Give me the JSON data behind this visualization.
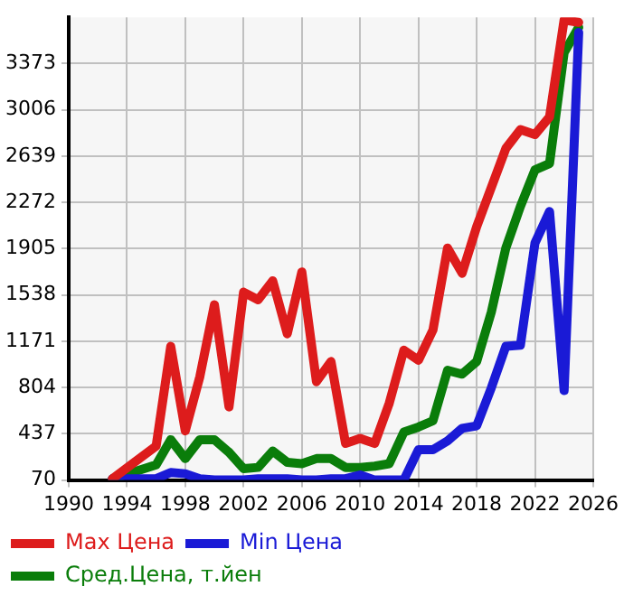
{
  "chart_data": {
    "type": "line",
    "x": [
      1993,
      1996,
      1997,
      1998,
      1999,
      2000,
      2001,
      2002,
      2003,
      2004,
      2005,
      2006,
      2007,
      2008,
      2009,
      2010,
      2011,
      2012,
      2013,
      2014,
      2015,
      2016,
      2017,
      2018,
      2019,
      2020,
      2021,
      2022,
      2023,
      2024,
      2025
    ],
    "series": [
      {
        "name": "Max Цена",
        "color": "#dd1c1c",
        "values": [
          80,
          340,
          1130,
          460,
          890,
          1460,
          650,
          1560,
          1500,
          1650,
          1230,
          1720,
          850,
          1010,
          360,
          400,
          360,
          680,
          1100,
          1020,
          1260,
          1910,
          1710,
          2080,
          2390,
          2700,
          2850,
          2810,
          2950,
          3720,
          3700
        ]
      },
      {
        "name": "Min Цена",
        "color": "#1a1ad6",
        "values": [
          80,
          80,
          130,
          120,
          80,
          70,
          70,
          70,
          80,
          80,
          80,
          70,
          70,
          80,
          80,
          110,
          70,
          70,
          70,
          310,
          310,
          380,
          480,
          500,
          800,
          1130,
          1140,
          1950,
          2200,
          780,
          3620
        ]
      },
      {
        "name": "Сред.Цена, т.йен",
        "color": "#0a7d0a",
        "values": [
          80,
          190,
          390,
          240,
          390,
          390,
          290,
          160,
          170,
          300,
          210,
          200,
          240,
          240,
          170,
          170,
          180,
          200,
          450,
          490,
          540,
          940,
          910,
          1010,
          1400,
          1910,
          2240,
          2530,
          2580,
          3460,
          3660
        ]
      }
    ],
    "xlim": [
      1990,
      2026
    ],
    "xticks": [
      1990,
      1994,
      1998,
      2002,
      2006,
      2010,
      2014,
      2018,
      2022,
      2026
    ],
    "ylim": [
      70,
      3740
    ],
    "yticks": [
      70,
      437,
      804,
      1171,
      1538,
      1905,
      2272,
      2639,
      3006,
      3373
    ],
    "grid": true,
    "legend": "bottom",
    "marker": "none",
    "line_style": "solid"
  }
}
